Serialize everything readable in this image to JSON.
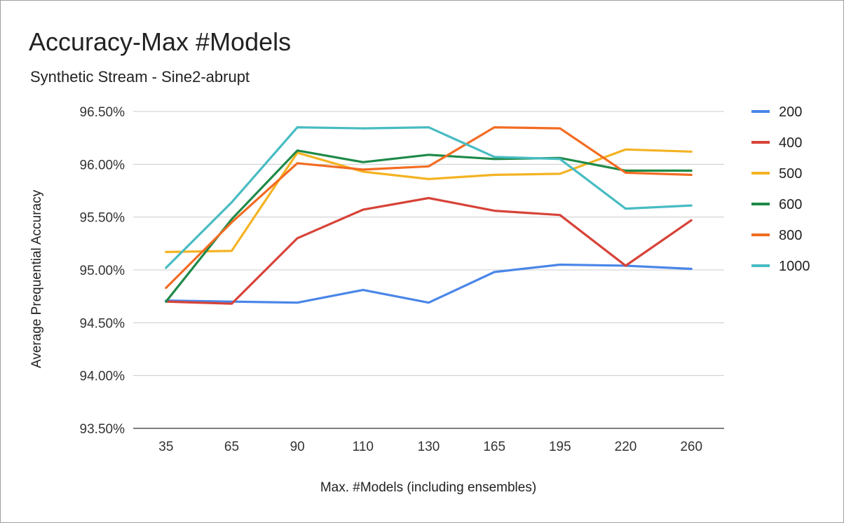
{
  "chart_data": {
    "type": "line",
    "title": "Accuracy-Max #Models",
    "subtitle": "Synthetic Stream - Sine2-abrupt",
    "xlabel": "Max. #Models (including ensembles)",
    "ylabel": "Average Prequential Accuracy",
    "categories": [
      "35",
      "65",
      "90",
      "110",
      "130",
      "165",
      "195",
      "220",
      "260"
    ],
    "ylim": [
      93.5,
      96.5
    ],
    "yticks": [
      "93.50%",
      "94.00%",
      "94.50%",
      "95.00%",
      "95.50%",
      "96.00%",
      "96.50%"
    ],
    "ytick_values": [
      93.5,
      94.0,
      94.5,
      95.0,
      95.5,
      96.0,
      96.5
    ],
    "grid": true,
    "legend_position": "right",
    "series": [
      {
        "name": "200",
        "color": "#4a86e8",
        "values": [
          94.71,
          94.7,
          94.69,
          94.81,
          94.69,
          94.98,
          95.05,
          95.04,
          95.01
        ]
      },
      {
        "name": "400",
        "color": "#d74338",
        "values": [
          94.7,
          94.68,
          95.3,
          95.57,
          95.68,
          95.56,
          95.52,
          95.04,
          95.47
        ]
      },
      {
        "name": "500",
        "color": "#f4b323",
        "values": [
          95.17,
          95.18,
          96.11,
          95.93,
          95.86,
          95.9,
          95.91,
          96.14,
          96.12
        ]
      },
      {
        "name": "600",
        "color": "#1e8a47",
        "values": [
          94.7,
          95.48,
          96.13,
          96.02,
          96.09,
          96.05,
          96.06,
          95.94,
          95.94
        ]
      },
      {
        "name": "800",
        "color": "#f26c22",
        "values": [
          94.83,
          95.45,
          96.01,
          95.95,
          95.98,
          96.35,
          96.34,
          95.92,
          95.9
        ]
      },
      {
        "name": "1000",
        "color": "#47bcc2",
        "values": [
          95.02,
          95.64,
          96.35,
          96.34,
          96.35,
          96.07,
          96.05,
          95.58,
          95.61
        ]
      }
    ]
  }
}
